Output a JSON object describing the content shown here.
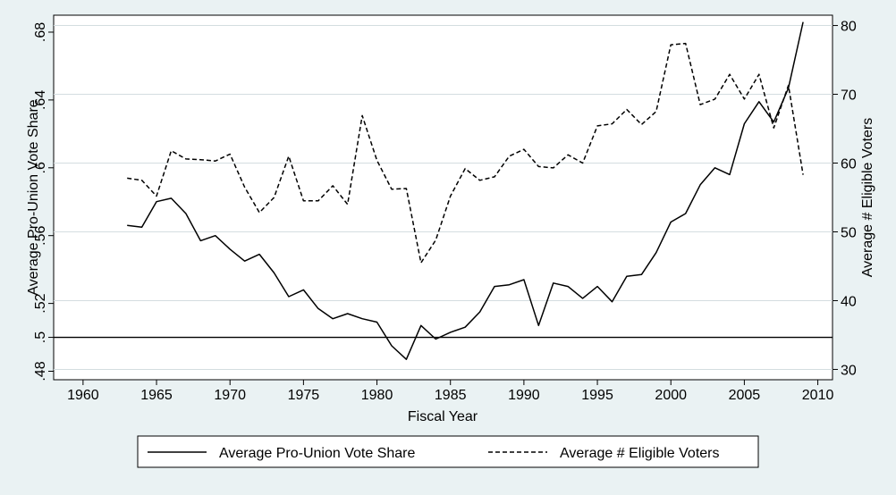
{
  "chart_data": {
    "type": "line",
    "title": "",
    "xlabel": "Fiscal Year",
    "ylabel_left": "Average Pro-Union Vote Share",
    "ylabel_right": "Average # Eligible Voters",
    "xlim": [
      1958,
      2011
    ],
    "ylim_left": [
      0.475,
      0.69
    ],
    "ylim_right": [
      28.5,
      81.5
    ],
    "x_ticks": [
      1960,
      1965,
      1970,
      1975,
      1980,
      1985,
      1990,
      1995,
      2000,
      2005,
      2010
    ],
    "y_ticks_left": [
      {
        "value": 0.48,
        "label": ".48"
      },
      {
        "value": 0.5,
        "label": ".5"
      },
      {
        "value": 0.52,
        "label": ".52"
      },
      {
        "value": 0.56,
        "label": ".56"
      },
      {
        "value": 0.6,
        "label": ".6"
      },
      {
        "value": 0.64,
        "label": ".64"
      },
      {
        "value": 0.68,
        "label": ".68"
      }
    ],
    "y_ticks_right": [
      30,
      40,
      50,
      60,
      70,
      80
    ],
    "grid": true,
    "reference_line": {
      "axis": "left",
      "value": 0.5
    },
    "legend_position": "bottom",
    "x": [
      1963,
      1964,
      1965,
      1966,
      1967,
      1968,
      1969,
      1970,
      1971,
      1972,
      1973,
      1974,
      1975,
      1976,
      1977,
      1978,
      1979,
      1980,
      1981,
      1982,
      1983,
      1984,
      1985,
      1986,
      1987,
      1988,
      1989,
      1990,
      1991,
      1992,
      1993,
      1994,
      1995,
      1996,
      1997,
      1998,
      1999,
      2000,
      2001,
      2002,
      2003,
      2004,
      2005,
      2006,
      2007,
      2008,
      2009
    ],
    "series": [
      {
        "name": "Average Pro-Union Vote Share",
        "axis": "left",
        "style": "solid",
        "values": [
          0.566,
          0.565,
          0.58,
          0.582,
          0.573,
          0.557,
          0.56,
          0.552,
          0.545,
          0.549,
          0.538,
          0.524,
          0.528,
          0.517,
          0.511,
          0.514,
          0.511,
          0.509,
          0.495,
          0.487,
          0.507,
          0.499,
          0.503,
          0.506,
          0.515,
          0.53,
          0.531,
          0.534,
          0.507,
          0.532,
          0.53,
          0.523,
          0.53,
          0.521,
          0.536,
          0.537,
          0.55,
          0.568,
          0.573,
          0.59,
          0.6,
          0.596,
          0.626,
          0.639,
          0.627,
          0.647,
          0.686
        ]
      },
      {
        "name": "Average # Eligible Voters",
        "axis": "right",
        "style": "dashed",
        "values": [
          57.8,
          57.5,
          55.2,
          61.8,
          60.6,
          60.5,
          60.3,
          61.3,
          56.5,
          52.8,
          55.0,
          61.0,
          54.5,
          54.5,
          56.7,
          54.0,
          66.9,
          60.4,
          56.2,
          56.3,
          45.5,
          48.8,
          55.2,
          59.2,
          57.5,
          58.0,
          61.0,
          62.0,
          59.5,
          59.3,
          61.2,
          60.0,
          65.4,
          65.7,
          67.8,
          65.6,
          67.5,
          77.2,
          77.4,
          68.5,
          69.3,
          72.9,
          69.3,
          72.9,
          65.1,
          71.3,
          58.3
        ]
      }
    ]
  }
}
